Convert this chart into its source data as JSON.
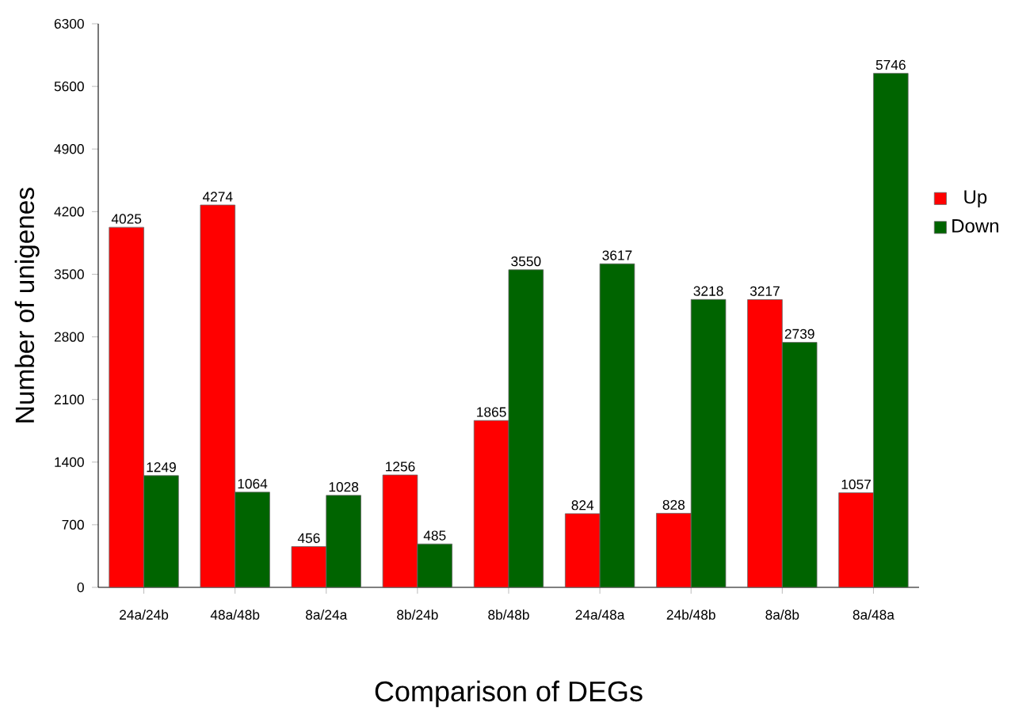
{
  "chart_data": {
    "type": "bar",
    "xlabel": "Comparison of DEGs",
    "ylabel": "Number of unigenes",
    "categories": [
      "24a/24b",
      "48a/48b",
      "8a/24a",
      "8b/24b",
      "8b/48b",
      "24a/48a",
      "24b/48b",
      "8a/8b",
      "8a/48a"
    ],
    "series": [
      {
        "name": "Up",
        "color": "#ff0000",
        "values": [
          4025,
          4274,
          456,
          1256,
          1865,
          824,
          828,
          3217,
          1057
        ]
      },
      {
        "name": "Down",
        "color": "#006400",
        "values": [
          1249,
          1064,
          1028,
          485,
          3550,
          3617,
          3218,
          2739,
          5746
        ]
      }
    ],
    "ylim": [
      0,
      6300
    ],
    "yticks": [
      0,
      700,
      1400,
      2100,
      2800,
      3500,
      4200,
      4900,
      5600,
      6300
    ],
    "data_labels": true,
    "legend": "right"
  }
}
